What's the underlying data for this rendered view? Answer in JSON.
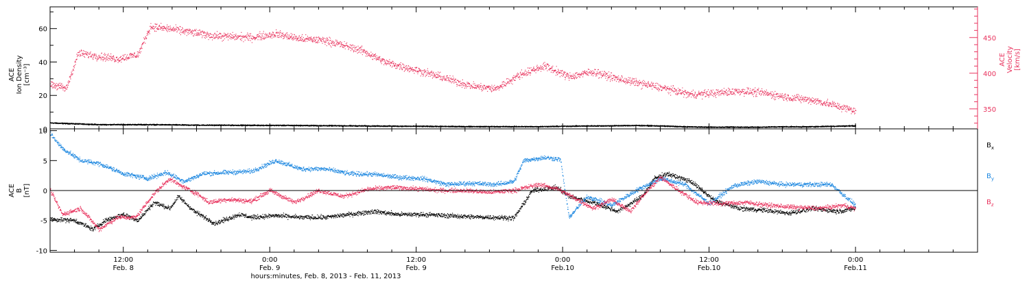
{
  "colors": {
    "axis": "#000000",
    "density": "#000000",
    "velocity": "#e8315c",
    "bx": "#000000",
    "by": "#1a86e0",
    "bz": "#e8315c"
  },
  "chart_data": [
    {
      "type": "scatter",
      "name": "plasma",
      "xlabel": "hours:minutes, Feb.  8, 2013 - Feb. 11, 2013",
      "x_ticks": [
        {
          "x": 12,
          "time": "12:00",
          "day": "Feb. 8"
        },
        {
          "x": 24,
          "time": "0:00",
          "day": "Feb. 9"
        },
        {
          "x": 36,
          "time": "12:00",
          "day": "Feb. 9"
        },
        {
          "x": 48,
          "time": "0:00",
          "day": "Feb.10"
        },
        {
          "x": 60,
          "time": "12:00",
          "day": "Feb.10"
        },
        {
          "x": 72,
          "time": "0:00",
          "day": "Feb.11"
        }
      ],
      "xlim": [
        6,
        82
      ],
      "left_axis": {
        "label_lines": [
          "ACE",
          "Ion Density",
          "[cm⁻³]"
        ],
        "ylim": [
          0,
          73
        ],
        "ticks": [
          0,
          20,
          40,
          60
        ]
      },
      "right_axis": {
        "label_lines": [
          "ACE",
          "Velocity",
          "[km/s]"
        ],
        "ylim": [
          322,
          493
        ],
        "ticks": [
          350,
          400,
          450
        ]
      },
      "series": [
        {
          "axis": "left",
          "color_key": "density",
          "points": [
            [
              6,
              3.5
            ],
            [
              8,
              3
            ],
            [
              10,
              2.5
            ],
            [
              14,
              2.5
            ],
            [
              18,
              2.2
            ],
            [
              22,
              2.1
            ],
            [
              26,
              2
            ],
            [
              30,
              1.8
            ],
            [
              34,
              1.6
            ],
            [
              38,
              1.4
            ],
            [
              42,
              1.3
            ],
            [
              46,
              1.3
            ],
            [
              48,
              1.5
            ],
            [
              50,
              1.7
            ],
            [
              52,
              1.8
            ],
            [
              54,
              2
            ],
            [
              56,
              1.7
            ],
            [
              58,
              1.2
            ],
            [
              60,
              1
            ],
            [
              62,
              1
            ],
            [
              64,
              1
            ],
            [
              66,
              1.2
            ],
            [
              68,
              1.2
            ],
            [
              70,
              1.5
            ],
            [
              72,
              1.8
            ]
          ]
        },
        {
          "axis": "right",
          "color_key": "velocity",
          "points": [
            [
              6,
              385
            ],
            [
              7.3,
              378
            ],
            [
              8.3,
              428
            ],
            [
              9.5,
              425
            ],
            [
              11.5,
              420
            ],
            [
              13.2,
              426
            ],
            [
              14.2,
              465
            ],
            [
              15.8,
              462
            ],
            [
              17.3,
              458
            ],
            [
              19.5,
              452
            ],
            [
              22.5,
              450
            ],
            [
              24.5,
              455
            ],
            [
              26.5,
              448
            ],
            [
              28.5,
              446
            ],
            [
              31.5,
              432
            ],
            [
              33.5,
              415
            ],
            [
              36.5,
              402
            ],
            [
              38.5,
              392
            ],
            [
              40.5,
              382
            ],
            [
              42.5,
              378
            ],
            [
              44.5,
              398
            ],
            [
              46.5,
              410
            ],
            [
              48.5,
              395
            ],
            [
              50.5,
              402
            ],
            [
              52.5,
              392
            ],
            [
              54.5,
              385
            ],
            [
              56.5,
              378
            ],
            [
              58.5,
              370
            ],
            [
              60.5,
              372
            ],
            [
              62.5,
              375
            ],
            [
              64.5,
              372
            ],
            [
              66.5,
              366
            ],
            [
              68.5,
              362
            ],
            [
              70,
              356
            ],
            [
              72,
              347
            ]
          ]
        }
      ]
    },
    {
      "type": "scatter",
      "name": "magnetic",
      "xlim": [
        6,
        82
      ],
      "left_axis": {
        "label_lines": [
          "ACE",
          "B",
          "[nT]"
        ],
        "ylim": [
          -10.3,
          10.3
        ],
        "ticks": [
          -10,
          -5,
          0,
          5,
          10
        ]
      },
      "legend": [
        {
          "base": "B",
          "sub": "x",
          "color_key": "bx"
        },
        {
          "base": "B",
          "sub": "y",
          "color_key": "by"
        },
        {
          "base": "B",
          "sub": "z",
          "color_key": "bz"
        }
      ],
      "series": [
        {
          "color_key": "bx",
          "points": [
            [
              6,
              -4.8
            ],
            [
              8,
              -5
            ],
            [
              9.5,
              -6.5
            ],
            [
              10.5,
              -5
            ],
            [
              12,
              -4
            ],
            [
              13.2,
              -5
            ],
            [
              14.5,
              -2
            ],
            [
              15.8,
              -3
            ],
            [
              16.5,
              -1
            ],
            [
              17.8,
              -3.5
            ],
            [
              19.5,
              -5.5
            ],
            [
              21.5,
              -4
            ],
            [
              22.5,
              -4.5
            ],
            [
              24.5,
              -4.2
            ],
            [
              26.5,
              -4.5
            ],
            [
              28.5,
              -4.5
            ],
            [
              30.5,
              -4
            ],
            [
              32.5,
              -3.5
            ],
            [
              34.5,
              -4
            ],
            [
              36.5,
              -4
            ],
            [
              38.5,
              -4.2
            ],
            [
              40.5,
              -4.4
            ],
            [
              42.5,
              -4.5
            ],
            [
              44,
              -4.6
            ],
            [
              45.5,
              0
            ],
            [
              47.5,
              0.5
            ],
            [
              48.5,
              -1
            ],
            [
              50.5,
              -2
            ],
            [
              52.5,
              -3.5
            ],
            [
              54.5,
              -1
            ],
            [
              55.5,
              2
            ],
            [
              56.5,
              2.8
            ],
            [
              58.5,
              1.5
            ],
            [
              60.5,
              -1.8
            ],
            [
              62.5,
              -3
            ],
            [
              64.5,
              -3.3
            ],
            [
              66.5,
              -3.8
            ],
            [
              68.5,
              -3
            ],
            [
              70.5,
              -3.5
            ],
            [
              72,
              -3
            ]
          ]
        },
        {
          "color_key": "by",
          "points": [
            [
              6,
              9.5
            ],
            [
              7,
              7
            ],
            [
              8.5,
              5
            ],
            [
              10,
              4.5
            ],
            [
              12,
              2.8
            ],
            [
              14,
              2
            ],
            [
              15.5,
              3
            ],
            [
              17,
              1.5
            ],
            [
              18.5,
              2.8
            ],
            [
              20.5,
              3
            ],
            [
              22.5,
              3.2
            ],
            [
              24.5,
              5
            ],
            [
              26.5,
              3.6
            ],
            [
              28.5,
              3.6
            ],
            [
              30.5,
              2.8
            ],
            [
              32.5,
              2.7
            ],
            [
              34.5,
              2.2
            ],
            [
              36.5,
              2
            ],
            [
              38.5,
              1
            ],
            [
              40.5,
              1.2
            ],
            [
              42.5,
              1
            ],
            [
              44,
              1.5
            ],
            [
              44.8,
              5
            ],
            [
              46.5,
              5.5
            ],
            [
              47.8,
              5.2
            ],
            [
              48.5,
              -4.5
            ],
            [
              50,
              -1
            ],
            [
              52,
              -2.5
            ],
            [
              54,
              0
            ],
            [
              56,
              2
            ],
            [
              58,
              1
            ],
            [
              60,
              -2.2
            ],
            [
              62,
              0.8
            ],
            [
              64,
              1.5
            ],
            [
              66,
              1
            ],
            [
              68,
              1
            ],
            [
              70,
              1
            ],
            [
              72,
              -2.5
            ]
          ]
        },
        {
          "color_key": "bz",
          "points": [
            [
              6,
              0
            ],
            [
              7,
              -4
            ],
            [
              8.5,
              -3
            ],
            [
              10,
              -6.5
            ],
            [
              11.5,
              -4.5
            ],
            [
              13,
              -4.5
            ],
            [
              14.5,
              -0.5
            ],
            [
              15.8,
              2
            ],
            [
              16.5,
              1
            ],
            [
              18,
              -0.5
            ],
            [
              19,
              -2
            ],
            [
              20.5,
              -1.5
            ],
            [
              22.5,
              -1.8
            ],
            [
              24,
              0
            ],
            [
              26,
              -2
            ],
            [
              28,
              0
            ],
            [
              30,
              -1
            ],
            [
              32,
              0.2
            ],
            [
              34,
              0.5
            ],
            [
              36,
              0.3
            ],
            [
              38,
              0
            ],
            [
              40,
              0
            ],
            [
              42,
              -0.3
            ],
            [
              44,
              0
            ],
            [
              46,
              1
            ],
            [
              47.5,
              0.3
            ],
            [
              49,
              -1.3
            ],
            [
              50.5,
              -3
            ],
            [
              52,
              -1.5
            ],
            [
              53.5,
              -3.5
            ],
            [
              54.5,
              -1
            ],
            [
              56,
              2.2
            ],
            [
              57.5,
              0
            ],
            [
              59,
              -2
            ],
            [
              61,
              -2.2
            ],
            [
              63,
              -2
            ],
            [
              65,
              -2.5
            ],
            [
              67,
              -2.8
            ],
            [
              69,
              -3
            ],
            [
              71,
              -2.5
            ],
            [
              72,
              -3
            ]
          ]
        }
      ]
    }
  ]
}
